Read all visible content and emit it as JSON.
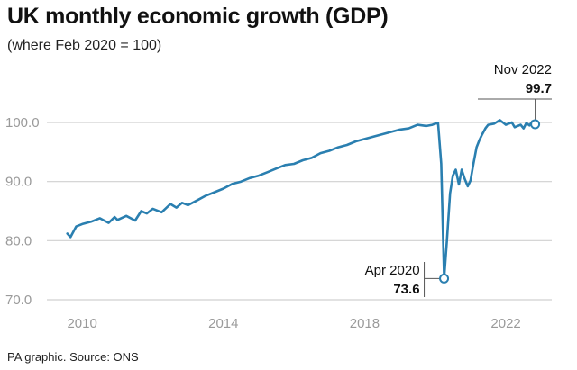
{
  "header": {
    "title": "UK monthly economic growth (GDP)",
    "subtitle": "(where Feb 2020 = 100)"
  },
  "footer": {
    "source": "PA graphic. Source: ONS"
  },
  "colors": {
    "line": "#2a7fb0",
    "grid": "#d0d0d0",
    "ticks": "#9a9a9a"
  },
  "chart_data": {
    "type": "line",
    "title": "UK monthly economic growth (GDP)",
    "subtitle": "(where Feb 2020 = 100)",
    "ylim": [
      70,
      100
    ],
    "yticks": [
      70,
      80,
      90,
      100
    ],
    "ytick_labels": [
      "70.0",
      "80.0",
      "90.0",
      "100.0"
    ],
    "xticks": [
      2010,
      2014,
      2018,
      2022
    ],
    "xtick_labels": [
      "2010",
      "2014",
      "2018",
      "2022"
    ],
    "grid": "horizontal",
    "series": [
      {
        "x": [
          2009.58,
          2009.67,
          2009.83,
          2010.0,
          2010.25,
          2010.5,
          2010.75,
          2010.92,
          2011.0,
          2011.25,
          2011.5,
          2011.67,
          2011.83,
          2012.0,
          2012.25,
          2012.5,
          2012.67,
          2012.83,
          2013.0,
          2013.25,
          2013.5,
          2013.75,
          2014.0,
          2014.25,
          2014.5,
          2014.75,
          2015.0,
          2015.25,
          2015.5,
          2015.75,
          2016.0,
          2016.25,
          2016.5,
          2016.75,
          2017.0,
          2017.25,
          2017.5,
          2017.75,
          2018.0,
          2018.25,
          2018.5,
          2018.75,
          2019.0,
          2019.25,
          2019.5,
          2019.75,
          2019.92,
          2020.0,
          2020.08,
          2020.17,
          2020.25,
          2020.33,
          2020.42,
          2020.5,
          2020.58,
          2020.67,
          2020.75,
          2020.83,
          2020.92,
          2021.0,
          2021.08,
          2021.17,
          2021.25,
          2021.33,
          2021.42,
          2021.5,
          2021.67,
          2021.83,
          2022.0,
          2022.17,
          2022.25,
          2022.42,
          2022.5,
          2022.58,
          2022.67,
          2022.75,
          2022.83
        ],
        "values": [
          81.2,
          80.6,
          82.4,
          82.8,
          83.2,
          83.8,
          83.0,
          84.0,
          83.5,
          84.2,
          83.4,
          85.0,
          84.6,
          85.4,
          84.8,
          86.2,
          85.6,
          86.4,
          86.0,
          86.8,
          87.6,
          88.2,
          88.8,
          89.6,
          90.0,
          90.6,
          91.0,
          91.6,
          92.2,
          92.8,
          93.0,
          93.6,
          94.0,
          94.8,
          95.2,
          95.8,
          96.2,
          96.8,
          97.2,
          97.6,
          98.0,
          98.4,
          98.8,
          99.0,
          99.6,
          99.4,
          99.6,
          99.8,
          99.9,
          93.0,
          73.6,
          80.0,
          88.0,
          91.0,
          92.0,
          89.5,
          92.0,
          90.5,
          89.2,
          90.2,
          93.0,
          95.8,
          97.0,
          98.0,
          99.0,
          99.6,
          99.8,
          100.4,
          99.6,
          100.0,
          99.2,
          99.6,
          99.0,
          99.9,
          99.5,
          100.2,
          99.7
        ]
      }
    ],
    "annotations": [
      {
        "label": "Apr 2020",
        "value": "73.6",
        "x": 2020.25,
        "y": 73.6
      },
      {
        "label": "Nov 2022",
        "value": "99.7",
        "x": 2022.83,
        "y": 99.7
      }
    ]
  }
}
